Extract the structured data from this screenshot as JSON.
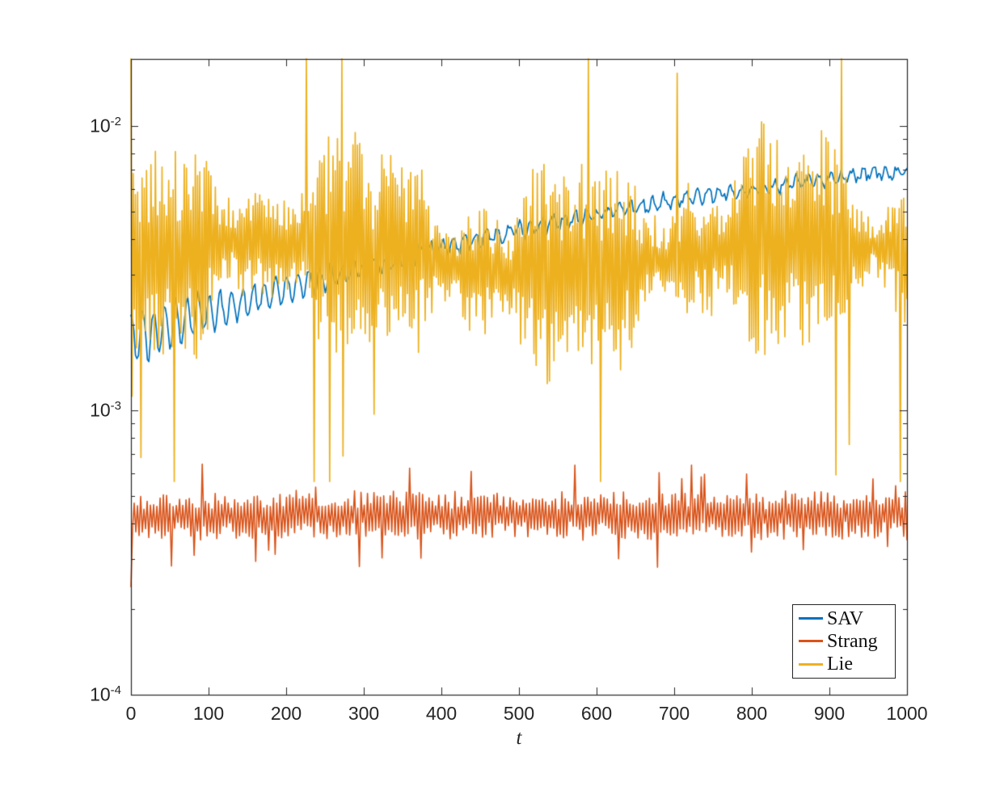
{
  "style": {
    "background": "#ffffff",
    "axis_color": "#262626",
    "tick_label_color": "#262626"
  },
  "chart_data": {
    "type": "line",
    "title": "",
    "xlabel": "t",
    "ylabel": "",
    "grid": false,
    "xlim": [
      0,
      1000
    ],
    "x_ticks": [
      0,
      100,
      200,
      300,
      400,
      500,
      600,
      700,
      800,
      900,
      1000
    ],
    "x_tick_labels": [
      "0",
      "100",
      "200",
      "300",
      "400",
      "500",
      "600",
      "700",
      "800",
      "900",
      "1000"
    ],
    "y_scale": "log10",
    "ylim": [
      0.0001,
      0.0172
    ],
    "y_ticks": [
      {
        "value": 0.01,
        "base": "10",
        "exp": "-2"
      },
      {
        "value": 0.001,
        "base": "10",
        "exp": "-3"
      },
      {
        "value": 0.0001,
        "base": "10",
        "exp": "-4"
      }
    ],
    "y_minor_mantissas": [
      2,
      3,
      4,
      5,
      6,
      7,
      8,
      9
    ],
    "legend": {
      "position": "lower-right",
      "entries": [
        {
          "label": "SAV",
          "color": "#0072BD"
        },
        {
          "label": "Strang",
          "color": "#D95319"
        },
        {
          "label": "Lie",
          "color": "#EDB120"
        }
      ]
    },
    "series": [
      {
        "name": "SAV",
        "color": "#0072BD",
        "line_width": 1.7,
        "model": "rising",
        "n_points": 520,
        "seed": 3,
        "log10_trend": [
          -2.75,
          0.946,
          -0.356
        ],
        "osc_cycles": 70,
        "osc_amp_min": 0.025,
        "osc_amp_extra": 0.095,
        "osc_decay": 6,
        "noise": 0.03,
        "summary": {
          "start": 0.0017,
          "mid": 0.0043,
          "end": 0.0069
        }
      },
      {
        "name": "Strang",
        "color": "#D95319",
        "line_width": 1.6,
        "model": "flat",
        "n_points": 480,
        "seed": 17,
        "log10_mean": -3.37,
        "noise": 0.08,
        "spike_prob": 0.06,
        "spike_mag": 0.1,
        "first_point_log10": -3.62,
        "summary": {
          "mean": 0.00043,
          "min": 0.00028,
          "max": 0.00062
        }
      },
      {
        "name": "Lie",
        "color": "#EDB120",
        "line_width": 1.7,
        "model": "wild",
        "n_points": 700,
        "seed": 42,
        "log10_center": -2.46,
        "envelope_base": 0.42,
        "dip_prob": 0.03,
        "peak_prob": 0.015,
        "clip_low": -3.25,
        "clip_high": -1.7642,
        "summary": {
          "typical_low": 0.0015,
          "typical_high": 0.009,
          "extreme_low": 0.00056,
          "extreme_high": 0.0172
        }
      }
    ]
  }
}
